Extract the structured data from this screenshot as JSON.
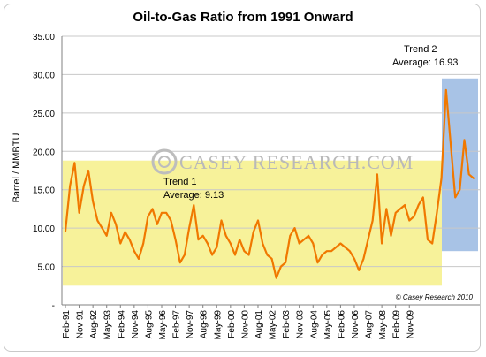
{
  "chart_data": {
    "type": "line",
    "title": "Oil-to-Gas Ratio from 1991 Onward",
    "ylabel": "Barrel / MMBTU",
    "xlabel": "",
    "ylim": [
      0,
      35
    ],
    "y_ticks": [
      {
        "value": 35,
        "label": "35.00"
      },
      {
        "value": 30,
        "label": "30.00"
      },
      {
        "value": 25,
        "label": "25.00"
      },
      {
        "value": 20,
        "label": "20.00"
      },
      {
        "value": 15,
        "label": "15.00"
      },
      {
        "value": 10,
        "label": "10.00"
      },
      {
        "value": 5,
        "label": "5.00"
      },
      {
        "value": 0,
        "label": "-"
      }
    ],
    "x_tick_labels": [
      "Feb-91",
      "Nov-91",
      "Aug-92",
      "May-93",
      "Feb-94",
      "Nov-94",
      "Aug-95",
      "May-96",
      "Feb-97",
      "Nov-97",
      "Aug-98",
      "May-99",
      "Feb-00",
      "Nov-00",
      "Aug-01",
      "May-02",
      "Feb-03",
      "Nov-03",
      "Aug-04",
      "May-05",
      "Feb-06",
      "Nov-06",
      "Aug-07",
      "May-08",
      "Feb-09",
      "Nov-09"
    ],
    "x_start": "Feb-91",
    "x_step": "quarterly",
    "grid": "horizontal",
    "series": [
      {
        "color": "#f07800",
        "values": [
          9.6,
          15.5,
          18.5,
          12.0,
          15.5,
          17.5,
          13.5,
          11.0,
          10.0,
          9.0,
          12.0,
          10.5,
          8.0,
          9.5,
          8.5,
          7.0,
          6.0,
          8.0,
          11.5,
          12.5,
          10.5,
          12.0,
          12.0,
          11.0,
          8.5,
          5.5,
          6.5,
          10.0,
          13.0,
          8.5,
          9.0,
          8.0,
          6.5,
          7.5,
          11.0,
          9.0,
          8.0,
          6.5,
          8.5,
          7.0,
          6.5,
          9.5,
          11.0,
          8.0,
          6.5,
          6.0,
          3.5,
          5.0,
          5.5,
          9.0,
          10.0,
          8.0,
          8.5,
          9.0,
          8.0,
          5.5,
          6.5,
          7.0,
          7.0,
          7.5,
          8.0,
          7.5,
          7.0,
          6.0,
          4.5,
          6.0,
          8.5,
          11.0,
          17.0,
          8.0,
          12.5,
          9.0,
          12.0,
          12.5,
          13.0,
          11.0,
          11.5,
          13.0,
          14.0,
          8.5,
          8.0,
          12.0,
          16.5,
          28.0,
          21.0,
          14.0,
          15.0,
          21.5,
          17.0,
          16.5
        ]
      }
    ],
    "regions": [
      {
        "name": "Trend 1",
        "from": "Feb-91",
        "to": "Nov-08",
        "y_from": 2.5,
        "y_to": 18.8,
        "color": "#f7f29a"
      },
      {
        "name": "Trend 2",
        "from": "Jan-09",
        "to": "end",
        "y_from": 7.0,
        "y_to": 29.5,
        "color": "#a8c3e6"
      }
    ],
    "annotations": [
      {
        "line1": "Trend 1",
        "line2": "Average: 9.13"
      },
      {
        "line1": "Trend 2",
        "line2": "Average: 16.93"
      }
    ],
    "watermark": "CASEY RESEARCH.COM",
    "credit": "© Casey Research 2010"
  }
}
